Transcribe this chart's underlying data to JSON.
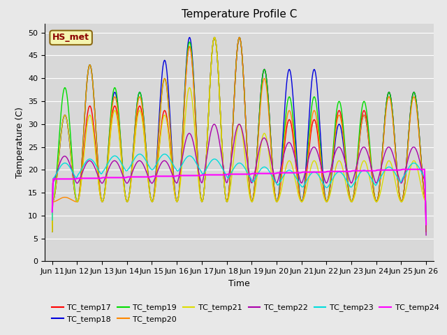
{
  "title": "Temperature Profile C",
  "xlabel": "Time",
  "ylabel": "Temperature (C)",
  "ylim": [
    0,
    52
  ],
  "yticks": [
    0,
    5,
    10,
    15,
    20,
    25,
    30,
    35,
    40,
    45,
    50
  ],
  "x_tick_labels": [
    "Jun 11",
    "Jun 12",
    "Jun 13",
    "Jun 14",
    "Jun 15",
    "Jun 16",
    "Jun 17",
    "Jun 18",
    "Jun 19",
    "Jun 20",
    "Jun 21",
    "Jun 22",
    "Jun 23",
    "Jun 24",
    "Jun 25",
    "Jun 26"
  ],
  "annotation_text": "HS_met",
  "series_colors": {
    "TC_temp17": "#ff0000",
    "TC_temp18": "#0000dd",
    "TC_temp19": "#00dd00",
    "TC_temp20": "#ff8800",
    "TC_temp21": "#dddd00",
    "TC_temp22": "#aa00aa",
    "TC_temp23": "#00dddd",
    "TC_temp24": "#ff00ff"
  },
  "bg_color": "#e8e8e8",
  "plot_bg": "#d8d8d8",
  "title_fontsize": 11,
  "axis_label_fontsize": 9,
  "tick_fontsize": 8
}
